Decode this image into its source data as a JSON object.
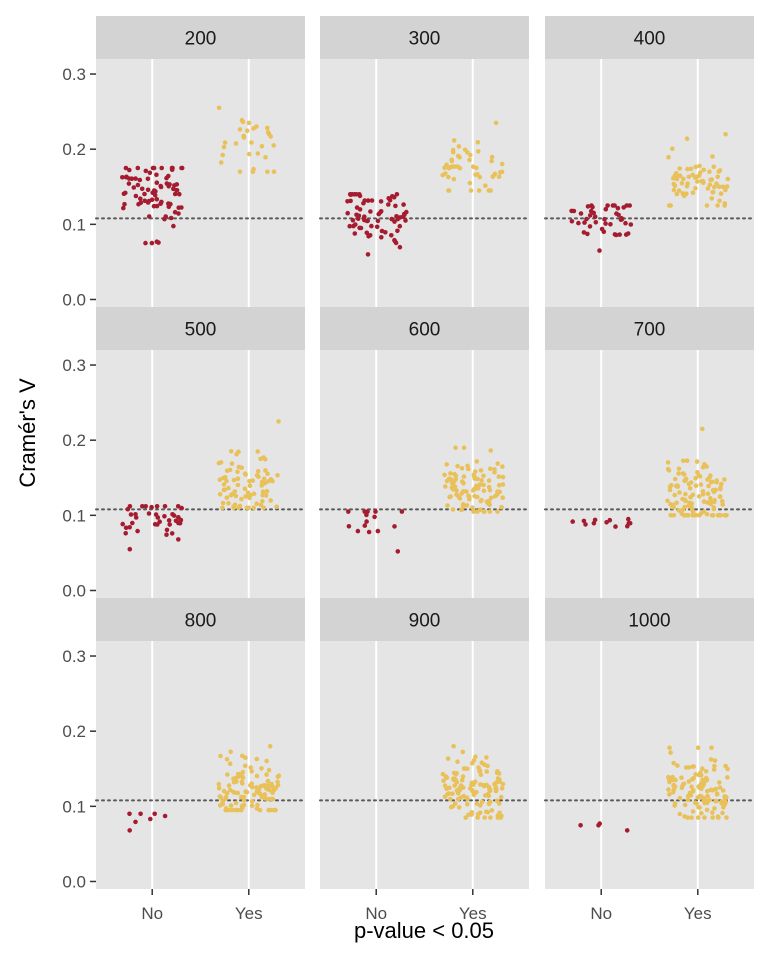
{
  "chart_data": {
    "type": "scatter",
    "jitter": true,
    "xlabel": "p-value < 0.05",
    "ylabel": "Cramér's V",
    "x_categories": [
      "No",
      "Yes"
    ],
    "ylim": [
      -0.01,
      0.32
    ],
    "y_ticks": [
      0.0,
      0.1,
      0.2,
      0.3
    ],
    "y_tick_labels": [
      "0.0",
      "0.1",
      "0.2",
      "0.3"
    ],
    "reference_line": {
      "y": 0.108,
      "style": "dotted"
    },
    "colors": {
      "No": "#a51c30",
      "Yes": "#e9c15a",
      "panel": "#e5e5e5",
      "strip": "#d3d3d3",
      "grid": "#ffffff",
      "refline": "#595959"
    },
    "grid": true,
    "facets": [
      {
        "label": "200",
        "groups": {
          "No": {
            "n": 80,
            "min": 0.075,
            "max": 0.175,
            "center": 0.14
          },
          "Yes": {
            "n": 30,
            "min": 0.17,
            "max": 0.255,
            "center": 0.205
          }
        }
      },
      {
        "label": "300",
        "groups": {
          "No": {
            "n": 70,
            "min": 0.06,
            "max": 0.14,
            "center": 0.115
          },
          "Yes": {
            "n": 50,
            "min": 0.145,
            "max": 0.235,
            "center": 0.178
          }
        }
      },
      {
        "label": "400",
        "groups": {
          "No": {
            "n": 45,
            "min": 0.065,
            "max": 0.125,
            "center": 0.11
          },
          "Yes": {
            "n": 70,
            "min": 0.125,
            "max": 0.22,
            "center": 0.155
          }
        }
      },
      {
        "label": "500",
        "groups": {
          "No": {
            "n": 40,
            "min": 0.055,
            "max": 0.112,
            "center": 0.095
          },
          "Yes": {
            "n": 80,
            "min": 0.11,
            "max": 0.225,
            "center": 0.14
          }
        }
      },
      {
        "label": "600",
        "groups": {
          "No": {
            "n": 15,
            "min": 0.052,
            "max": 0.105,
            "center": 0.088
          },
          "Yes": {
            "n": 100,
            "min": 0.105,
            "max": 0.19,
            "center": 0.138
          }
        }
      },
      {
        "label": "700",
        "groups": {
          "No": {
            "n": 12,
            "min": 0.085,
            "max": 0.095,
            "center": 0.09
          },
          "Yes": {
            "n": 110,
            "min": 0.1,
            "max": 0.215,
            "center": 0.128
          }
        }
      },
      {
        "label": "800",
        "groups": {
          "No": {
            "n": 7,
            "min": 0.068,
            "max": 0.09,
            "center": 0.08
          },
          "Yes": {
            "n": 110,
            "min": 0.095,
            "max": 0.18,
            "center": 0.125
          }
        }
      },
      {
        "label": "900",
        "groups": {
          "No": {
            "n": 0,
            "min": 0,
            "max": 0,
            "center": 0
          },
          "Yes": {
            "n": 120,
            "min": 0.085,
            "max": 0.18,
            "center": 0.123
          }
        }
      },
      {
        "label": "1000",
        "groups": {
          "No": {
            "n": 4,
            "min": 0.068,
            "max": 0.077,
            "center": 0.074
          },
          "Yes": {
            "n": 120,
            "min": 0.085,
            "max": 0.178,
            "center": 0.12
          }
        }
      }
    ]
  }
}
